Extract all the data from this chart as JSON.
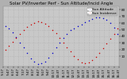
{
  "title": "Solar PV/Inverter Perf - Sun Altitude/Incid Angle",
  "background_color": "#b0b0b0",
  "plot_bg_color": "#c8c8c8",
  "grid_color": "#aaaaaa",
  "xlim": [
    0,
    16
  ],
  "ylim": [
    -5,
    85
  ],
  "ytick_vals": [
    10,
    20,
    30,
    40,
    50,
    60,
    70,
    80
  ],
  "ytick_labels": [
    "10",
    "20",
    "30",
    "40",
    "50",
    "60",
    "70",
    "80"
  ],
  "legend": [
    {
      "label": "Sun Altitude",
      "color": "#0000cc"
    },
    {
      "label": "Sun Incidence",
      "color": "#cc0000"
    }
  ],
  "blue_x": [
    0.3,
    0.8,
    1.3,
    1.8,
    2.3,
    2.8,
    3.3,
    3.8,
    4.3,
    4.8,
    5.3,
    5.8,
    6.3,
    6.8,
    7.3,
    7.8,
    8.3,
    8.8,
    9.3,
    9.8,
    10.3,
    10.8,
    11.3,
    11.8,
    12.3,
    12.8,
    13.3,
    13.8,
    14.3,
    14.8,
    15.3,
    15.8
  ],
  "blue_y": [
    55,
    52,
    46,
    39,
    31,
    23,
    15,
    7,
    2,
    -2,
    -1,
    2,
    8,
    15,
    23,
    31,
    38,
    44,
    49,
    52,
    55,
    58,
    61,
    64,
    66,
    68,
    68,
    67,
    65,
    60,
    53,
    44
  ],
  "red_x": [
    0.3,
    0.8,
    1.3,
    1.8,
    2.3,
    2.8,
    3.3,
    3.8,
    4.3,
    4.8,
    5.3,
    5.8,
    6.3,
    6.8,
    7.3,
    7.8,
    8.3,
    8.8,
    9.3,
    9.8,
    10.3,
    10.8,
    11.3,
    11.8,
    12.3,
    12.8,
    13.3,
    13.8,
    14.3,
    14.8,
    15.3,
    15.8
  ],
  "red_y": [
    20,
    26,
    32,
    38,
    44,
    49,
    54,
    58,
    60,
    62,
    61,
    59,
    55,
    50,
    45,
    38,
    31,
    23,
    17,
    10,
    5,
    1,
    -1,
    1,
    4,
    9,
    15,
    22,
    29,
    36,
    44,
    52
  ],
  "xtick_labels": [
    "5:17",
    "5:47",
    "6:17",
    "6:47",
    "7:17",
    "7:47",
    "8:17",
    "8:47",
    "9:17",
    "9:47",
    "10:17",
    "10:47",
    "11:17",
    "11:47",
    "12:17",
    "12:47",
    "13:17",
    "13:47",
    "14:17",
    "14:47",
    "15:17",
    "15:47",
    "16:17",
    "16:47"
  ],
  "marker_size": 1.2,
  "title_fontsize": 4.0,
  "tick_fontsize": 3.0,
  "legend_fontsize": 3.2
}
